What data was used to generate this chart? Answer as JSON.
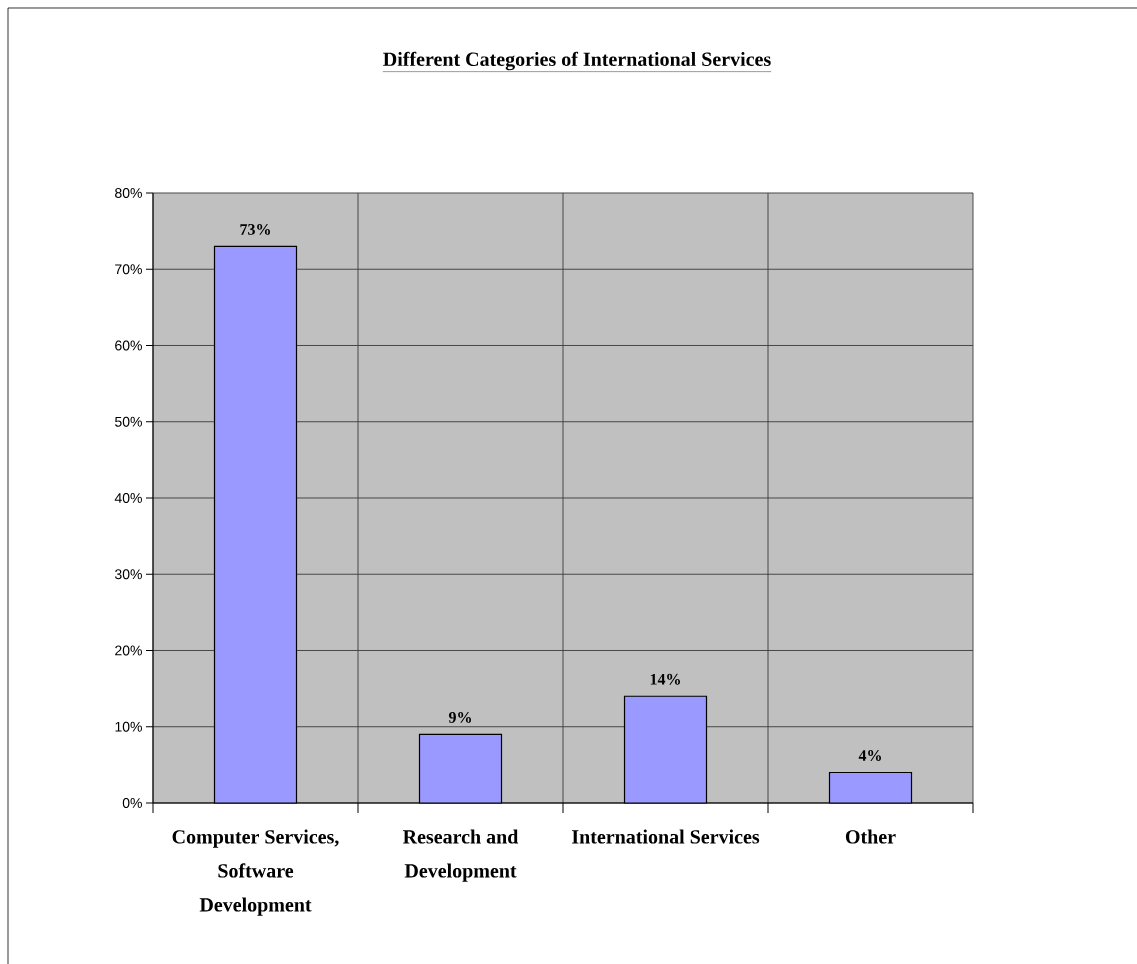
{
  "chart_data": {
    "type": "bar",
    "title": "Different Categories of International Services",
    "categories": [
      "Computer Services, Software Development",
      "Research and Development",
      "International Services",
      "Other"
    ],
    "values": [
      73,
      9,
      14,
      4
    ],
    "color": "#9999ff",
    "value_labels": [
      "73%",
      "9%",
      "14%",
      "4%"
    ],
    "ylim": [
      0,
      80
    ],
    "yticks": [
      {
        "value": 0,
        "label": "0%"
      },
      {
        "value": 10,
        "label": "10%"
      },
      {
        "value": 20,
        "label": "20%"
      },
      {
        "value": 30,
        "label": "30%"
      },
      {
        "value": 40,
        "label": "40%"
      },
      {
        "value": 50,
        "label": "50%"
      },
      {
        "value": 60,
        "label": "60%"
      },
      {
        "value": 70,
        "label": "70%"
      },
      {
        "value": 80,
        "label": "80%"
      }
    ],
    "grid": true
  }
}
